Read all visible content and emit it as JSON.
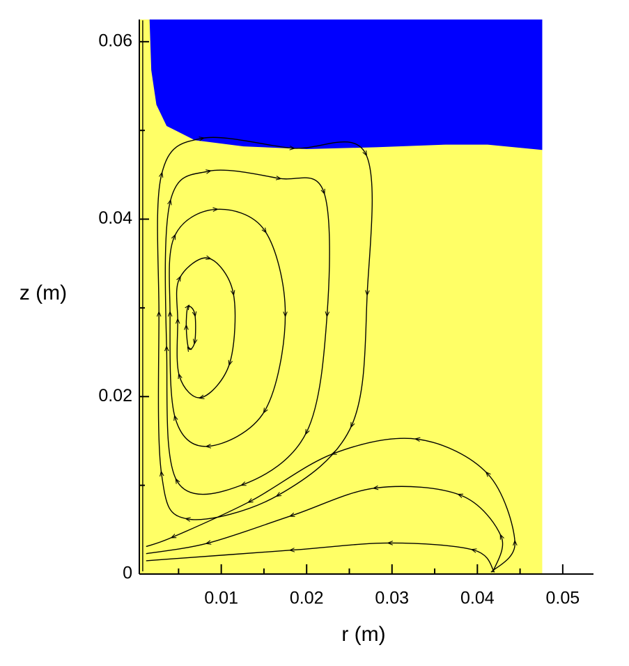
{
  "chart_data": {
    "type": "streamline",
    "x_label": "r (m)",
    "y_label": "z (m)",
    "xlim": [
      0.0004,
      0.0536
    ],
    "ylim": [
      0,
      0.0625
    ],
    "xticks": [
      0.01,
      0.02,
      0.03,
      0.04,
      0.05
    ],
    "yticks": [
      0,
      0.02,
      0.04,
      0.06
    ],
    "xminorticks": [
      0.005,
      0.015,
      0.025,
      0.035,
      0.045
    ],
    "yminorticks": [
      0.01,
      0.03,
      0.05
    ],
    "line_color": "#000000",
    "regions": [
      {
        "color": "#ffff66",
        "x": [
          0.0004,
          0.0476,
          0.0476,
          0.0004
        ],
        "y": [
          0,
          0,
          0.0625,
          0.0625
        ]
      },
      {
        "color": "#0000ff",
        "x": [
          0.0016,
          0.0018,
          0.0024,
          0.0036,
          0.0069,
          0.0126,
          0.02,
          0.0281,
          0.0363,
          0.0412,
          0.0476,
          0.0476
        ],
        "y": [
          0.0625,
          0.0568,
          0.0529,
          0.0505,
          0.0489,
          0.0482,
          0.0479,
          0.0481,
          0.0484,
          0.0484,
          0.0478,
          0.0625
        ]
      }
    ],
    "series": [
      {
        "closed": true,
        "x": [
          0.003,
          0.0077,
          0.0183,
          0.0269,
          0.0271,
          0.0253,
          0.0167,
          0.0061,
          0.003,
          0.0027
        ],
        "y": [
          0.045,
          0.0491,
          0.048,
          0.0474,
          0.0317,
          0.0168,
          0.0089,
          0.0062,
          0.0113,
          0.0293
        ]
      },
      {
        "closed": true,
        "x": [
          0.004,
          0.0085,
          0.0167,
          0.022,
          0.0224,
          0.02,
          0.0126,
          0.0048,
          0.0036
        ],
        "y": [
          0.0419,
          0.0454,
          0.0446,
          0.0431,
          0.0293,
          0.016,
          0.0101,
          0.0105,
          0.0254
        ]
      },
      {
        "closed": true,
        "x": [
          0.0045,
          0.0093,
          0.0151,
          0.0175,
          0.0151,
          0.0085,
          0.0046,
          0.004
        ],
        "y": [
          0.038,
          0.0411,
          0.0387,
          0.0293,
          0.0184,
          0.0144,
          0.0176,
          0.0293
        ]
      },
      {
        "closed": true,
        "x": [
          0.0051,
          0.0085,
          0.0114,
          0.011,
          0.0077,
          0.0051,
          0.0049
        ],
        "y": [
          0.0333,
          0.0356,
          0.0317,
          0.0238,
          0.0199,
          0.0223,
          0.0285
        ]
      },
      {
        "closed": true,
        "x": [
          0.0061,
          0.0069,
          0.0069,
          0.0062,
          0.0059
        ],
        "y": [
          0.0301,
          0.0293,
          0.0262,
          0.0254,
          0.0278
        ]
      },
      {
        "closed": false,
        "x": [
          0.0416,
          0.0444,
          0.0412,
          0.033,
          0.0232,
          0.0134,
          0.0044,
          0.0012
        ],
        "y": [
          0.0002,
          0.0035,
          0.0113,
          0.0152,
          0.0136,
          0.0082,
          0.0042,
          0.0031
        ]
      },
      {
        "closed": false,
        "x": [
          0.0418,
          0.0428,
          0.038,
          0.0281,
          0.0183,
          0.0085,
          0.0012
        ],
        "y": [
          0.0002,
          0.0042,
          0.0089,
          0.0097,
          0.0066,
          0.0035,
          0.0023
        ]
      },
      {
        "closed": false,
        "x": [
          0.042,
          0.0396,
          0.0298,
          0.0183,
          0.0012
        ],
        "y": [
          0.0002,
          0.0027,
          0.0035,
          0.0027,
          0.0015
        ]
      },
      {
        "closed": false,
        "x": [
          0.0008,
          0.0008
        ],
        "y": [
          0.0003,
          0.0624
        ]
      }
    ]
  }
}
